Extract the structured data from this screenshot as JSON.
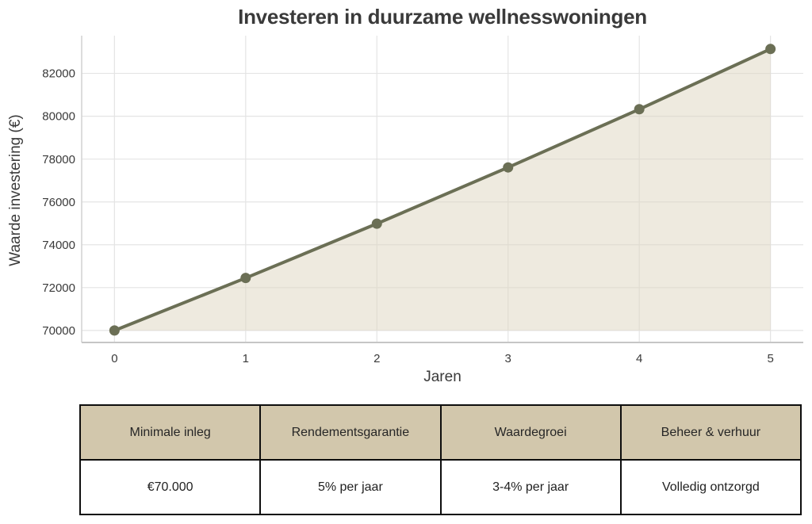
{
  "chart_data": {
    "type": "area",
    "title": "Investeren in duurzame wellnesswoningen",
    "xlabel": "Jaren",
    "ylabel": "Waarde investering (€)",
    "x": [
      0,
      1,
      2,
      3,
      4,
      5
    ],
    "values": [
      70000,
      72450,
      74986,
      77610,
      80327,
      83138
    ],
    "baseline": 70000,
    "xlim": [
      -0.25,
      5.25
    ],
    "ylim": [
      69440,
      83760
    ],
    "xticks": [
      0,
      1,
      2,
      3,
      4,
      5
    ],
    "yticks": [
      70000,
      72000,
      74000,
      76000,
      78000,
      80000,
      82000
    ],
    "grid": true,
    "legend_position": "none",
    "line_color": "#6b6f55",
    "marker_color": "#6b6f55",
    "fill_color": "#ded5bf",
    "grid_color": "#e4e4e4",
    "spine_color": "#c6c6c6"
  },
  "table": {
    "header_bg": "#d2c7ac",
    "columns": [
      {
        "header": "Minimale inleg",
        "value": "€70.000"
      },
      {
        "header": "Rendementsgarantie",
        "value": "5% per jaar"
      },
      {
        "header": "Waardegroei",
        "value": "3-4% per jaar"
      },
      {
        "header": "Beheer & verhuur",
        "value": "Volledig ontzorgd"
      }
    ]
  }
}
